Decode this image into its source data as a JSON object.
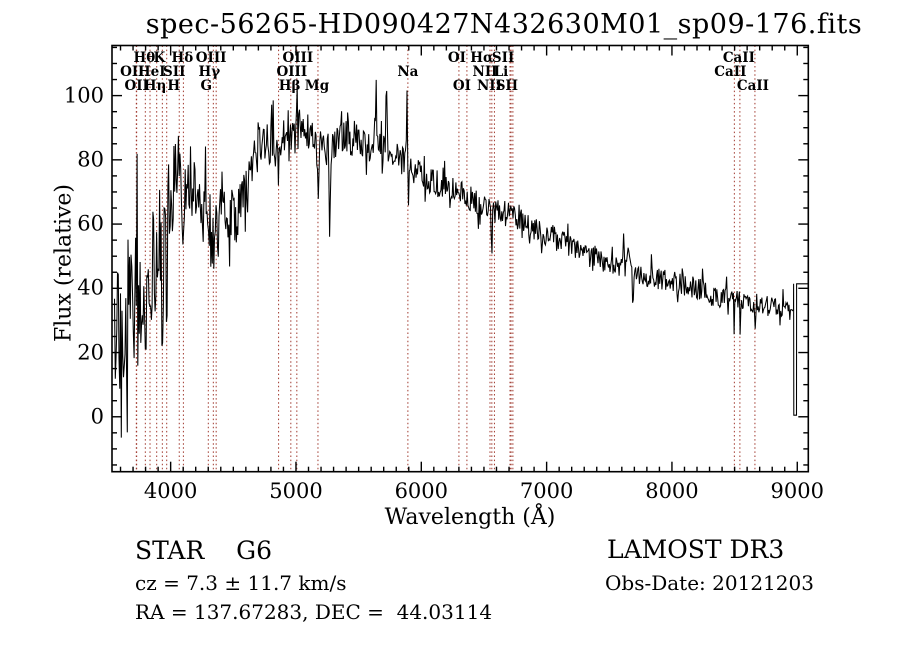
{
  "title": "spec-56265-HD090427N432630M01_sp09-176.fits",
  "annotations": {
    "classification": "STAR    G6",
    "cz": "cz = 7.3 ± 11.7 km/s",
    "ra_dec": "RA = 137.67283, DEC =  44.03114",
    "survey": "LAMOST DR3",
    "obs_date": "Obs-Date: 20121203"
  },
  "colors": {
    "background": "#ffffff",
    "spectrum": "#000000",
    "line_marker": "#a0392e",
    "text": "#000000"
  },
  "chart_data": {
    "type": "line",
    "title": "spec-56265-HD090427N432630M01_sp09-176.fits",
    "xlabel": "Wavelength (Å)",
    "ylabel": "Flux (relative)",
    "xlim": [
      3532,
      9088
    ],
    "ylim": [
      -17.1,
      115.6
    ],
    "x_major_ticks": [
      4000,
      5000,
      6000,
      7000,
      8000,
      9000
    ],
    "x_minor_step": 100,
    "y_major_ticks": [
      0,
      20,
      40,
      60,
      80,
      100
    ],
    "y_minor_step": 5,
    "grid": false,
    "legend": "none",
    "series": [
      {
        "name": "flux",
        "description": "Noisy G6 stellar spectrum; envelope and noise_sigma are [wavelength A, value] control points, features are [wavelength A, amplitude, width A] spikes/dips, end_glitch are literal [wavelength A, flux] points at the red end.",
        "sample_step": 6,
        "envelope": [
          [
            3535,
            22
          ],
          [
            3600,
            28
          ],
          [
            3650,
            31
          ],
          [
            3700,
            34
          ],
          [
            3760,
            38
          ],
          [
            3820,
            43
          ],
          [
            3880,
            50
          ],
          [
            3940,
            58
          ],
          [
            4000,
            70
          ],
          [
            4060,
            76
          ],
          [
            4120,
            75
          ],
          [
            4180,
            72
          ],
          [
            4240,
            66
          ],
          [
            4300,
            62
          ],
          [
            4360,
            61
          ],
          [
            4420,
            64
          ],
          [
            4470,
            63
          ],
          [
            4520,
            62
          ],
          [
            4570,
            66
          ],
          [
            4620,
            72
          ],
          [
            4670,
            79
          ],
          [
            4720,
            85
          ],
          [
            4770,
            86
          ],
          [
            4820,
            84
          ],
          [
            4870,
            86
          ],
          [
            4920,
            90
          ],
          [
            4970,
            93
          ],
          [
            5020,
            93
          ],
          [
            5070,
            91
          ],
          [
            5120,
            88
          ],
          [
            5170,
            86
          ],
          [
            5220,
            84
          ],
          [
            5270,
            83
          ],
          [
            5320,
            86
          ],
          [
            5370,
            88
          ],
          [
            5420,
            87
          ],
          [
            5480,
            86
          ],
          [
            5540,
            85
          ],
          [
            5600,
            84
          ],
          [
            5660,
            84
          ],
          [
            5720,
            83
          ],
          [
            5780,
            81
          ],
          [
            5840,
            80
          ],
          [
            5900,
            78
          ],
          [
            5960,
            76
          ],
          [
            6020,
            75
          ],
          [
            6100,
            73
          ],
          [
            6200,
            71
          ],
          [
            6300,
            70
          ],
          [
            6400,
            68
          ],
          [
            6500,
            66
          ],
          [
            6600,
            64
          ],
          [
            6700,
            63
          ],
          [
            6800,
            61
          ],
          [
            6900,
            59
          ],
          [
            7000,
            57
          ],
          [
            7100,
            55
          ],
          [
            7200,
            53
          ],
          [
            7300,
            51
          ],
          [
            7400,
            49
          ],
          [
            7500,
            47
          ],
          [
            7600,
            46
          ],
          [
            7700,
            45
          ],
          [
            7800,
            44
          ],
          [
            7900,
            43
          ],
          [
            8000,
            42
          ],
          [
            8100,
            41
          ],
          [
            8200,
            40
          ],
          [
            8300,
            39
          ],
          [
            8400,
            37
          ],
          [
            8500,
            36
          ],
          [
            8600,
            36
          ],
          [
            8700,
            35
          ],
          [
            8800,
            34
          ],
          [
            8900,
            33
          ],
          [
            8968,
            33
          ]
        ],
        "noise_sigma": [
          [
            3535,
            20
          ],
          [
            3650,
            24
          ],
          [
            3750,
            22
          ],
          [
            3850,
            19
          ],
          [
            3950,
            16
          ],
          [
            4050,
            13
          ],
          [
            4150,
            11
          ],
          [
            4300,
            10
          ],
          [
            4450,
            9
          ],
          [
            4600,
            8
          ],
          [
            4800,
            7
          ],
          [
            5000,
            6
          ],
          [
            5300,
            5.5
          ],
          [
            5600,
            5
          ],
          [
            6000,
            4.5
          ],
          [
            6500,
            4
          ],
          [
            7000,
            3.8
          ],
          [
            7500,
            3.4
          ],
          [
            8000,
            3.4
          ],
          [
            8600,
            3.4
          ],
          [
            8968,
            3.2
          ]
        ],
        "features": [
          [
            3797,
            -22,
            5
          ],
          [
            3835,
            -18,
            5
          ],
          [
            3934,
            -32,
            6
          ],
          [
            3969,
            -26,
            6
          ],
          [
            4101,
            -18,
            6
          ],
          [
            4340,
            -15,
            5
          ],
          [
            4861,
            -12,
            5
          ],
          [
            5175,
            -14,
            6
          ],
          [
            5270,
            -26,
            5
          ],
          [
            5640,
            22,
            4
          ],
          [
            5722,
            18,
            4
          ],
          [
            5886,
            22,
            4
          ],
          [
            5896,
            -14,
            5
          ],
          [
            6563,
            -12,
            4
          ],
          [
            6870,
            -5,
            6
          ],
          [
            7614,
            9,
            6
          ],
          [
            7650,
            8,
            6
          ],
          [
            7690,
            -5,
            6
          ],
          [
            8498,
            -4,
            4
          ],
          [
            8542,
            -5,
            4
          ],
          [
            8662,
            -4,
            4
          ]
        ],
        "end_glitch": [
          [
            8970,
            33
          ],
          [
            8971,
            41.4
          ],
          [
            8972,
            0.5
          ],
          [
            8994,
            0.5
          ],
          [
            8995,
            41.4
          ],
          [
            9086,
            41.4
          ]
        ]
      }
    ],
    "spectral_lines": [
      {
        "wl": 3726.0,
        "label": "OII",
        "row": 2,
        "dx": -4
      },
      {
        "wl": 3728.8,
        "label": "OII",
        "row": 3,
        "dx": 0
      },
      {
        "wl": 3797.9,
        "label": "Hθ",
        "row": 1,
        "dx": -1
      },
      {
        "wl": 3835.4,
        "label": "Hη",
        "row": 3,
        "dx": 5
      },
      {
        "wl": 3888.6,
        "label": "HeI",
        "row": 2,
        "dx": -5
      },
      {
        "wl": 3933.7,
        "label": "K",
        "row": 1,
        "dx": -3
      },
      {
        "wl": 3968.5,
        "label": "H",
        "row": 3,
        "dx": 7
      },
      {
        "wl": 4068.6,
        "label": "SII",
        "row": 2,
        "dx": -5
      },
      {
        "wl": 4101.7,
        "label": "Hδ",
        "row": 1,
        "dx": -1
      },
      {
        "wl": 4300.4,
        "label": "G",
        "row": 3,
        "dx": -2
      },
      {
        "wl": 4340.5,
        "label": "Hγ",
        "row": 2,
        "dx": -4
      },
      {
        "wl": 4363.2,
        "label": "OIII",
        "row": 1,
        "dx": -5
      },
      {
        "wl": 4861.3,
        "label": "Hβ",
        "row": 3,
        "dx": 11
      },
      {
        "wl": 4958.9,
        "label": "OIII",
        "row": 1,
        "dx": 7
      },
      {
        "wl": 5006.8,
        "label": "OIII",
        "row": 2,
        "dx": -5
      },
      {
        "wl": 5175.4,
        "label": "Mg",
        "row": 3,
        "dx": -1
      },
      {
        "wl": 5892.9,
        "label": "Na",
        "row": 2,
        "dx": 0
      },
      {
        "wl": 6300.2,
        "label": "OI",
        "row": 1,
        "dx": -2
      },
      {
        "wl": 6363.9,
        "label": "OI",
        "row": 3,
        "dx": -5
      },
      {
        "wl": 6548.1,
        "label": "NII",
        "row": 2,
        "dx": -5
      },
      {
        "wl": 6562.8,
        "label": "Hα",
        "row": 1,
        "dx": -10
      },
      {
        "wl": 6583.6,
        "label": "NII",
        "row": 3,
        "dx": -5
      },
      {
        "wl": 6707.8,
        "label": "Li",
        "row": 2,
        "dx": -9
      },
      {
        "wl": 6716.4,
        "label": "SII",
        "row": 1,
        "dx": -8
      },
      {
        "wl": 6730.8,
        "label": "SII",
        "row": 3,
        "dx": -6
      },
      {
        "wl": 8498.0,
        "label": "CaII",
        "row": 2,
        "dx": -4
      },
      {
        "wl": 8542.1,
        "label": "CaII",
        "row": 1,
        "dx": -1
      },
      {
        "wl": 8662.1,
        "label": "CaII",
        "row": 3,
        "dx": -2
      }
    ]
  }
}
